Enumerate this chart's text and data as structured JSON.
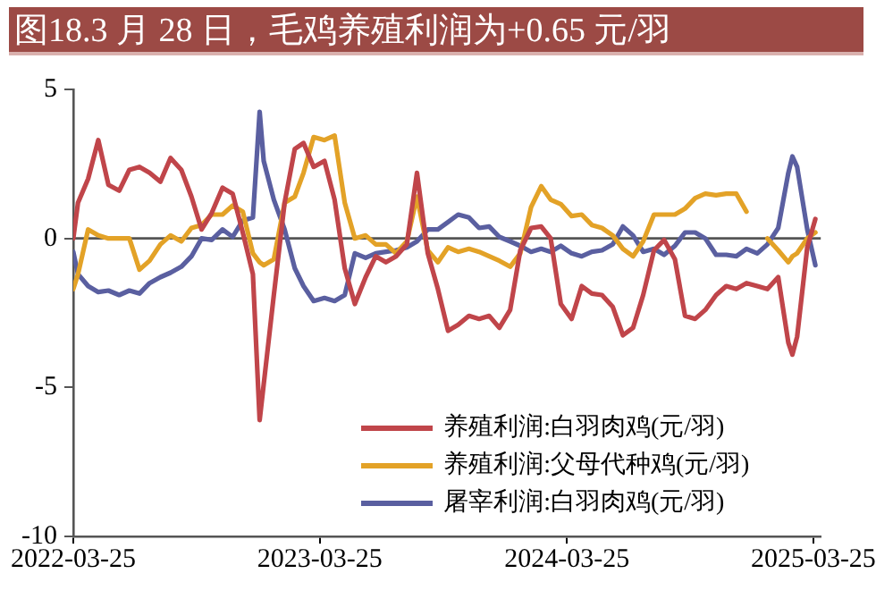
{
  "chart_data": {
    "type": "line",
    "title": "图18.3 月 28 日，毛鸡养殖利润为+0.65 元/羽",
    "x": [
      "2022-03-25",
      "2022-04-01",
      "2022-04-16",
      "2022-05-01",
      "2022-05-16",
      "2022-06-01",
      "2022-06-16",
      "2022-07-01",
      "2022-07-16",
      "2022-08-01",
      "2022-08-16",
      "2022-09-01",
      "2022-09-16",
      "2022-10-01",
      "2022-10-16",
      "2022-11-01",
      "2022-11-16",
      "2022-12-01",
      "2022-12-16",
      "2022-12-26",
      "2023-01-01",
      "2023-01-16",
      "2023-02-01",
      "2023-02-16",
      "2023-03-01",
      "2023-03-16",
      "2023-04-01",
      "2023-04-16",
      "2023-05-01",
      "2023-05-16",
      "2023-06-01",
      "2023-06-16",
      "2023-07-01",
      "2023-07-16",
      "2023-08-01",
      "2023-08-16",
      "2023-09-01",
      "2023-09-16",
      "2023-10-01",
      "2023-10-16",
      "2023-11-01",
      "2023-11-16",
      "2023-12-01",
      "2023-12-16",
      "2024-01-01",
      "2024-01-16",
      "2024-02-01",
      "2024-02-16",
      "2024-03-01",
      "2024-03-16",
      "2024-04-01",
      "2024-04-16",
      "2024-05-01",
      "2024-05-16",
      "2024-06-01",
      "2024-06-16",
      "2024-07-01",
      "2024-07-16",
      "2024-08-01",
      "2024-08-16",
      "2024-09-01",
      "2024-09-16",
      "2024-10-01",
      "2024-10-16",
      "2024-11-01",
      "2024-11-16",
      "2024-12-01",
      "2024-12-16",
      "2025-01-01",
      "2025-01-16",
      "2025-02-01",
      "2025-02-16",
      "2025-02-22",
      "2025-03-01",
      "2025-03-16",
      "2025-03-28"
    ],
    "series": [
      {
        "name": "养殖利润:白羽肉鸡(元/羽)",
        "color": "#c0454a",
        "values": [
          0,
          1.2,
          2.0,
          3.3,
          1.8,
          1.6,
          2.3,
          2.4,
          2.2,
          1.9,
          2.7,
          2.3,
          1.4,
          0.3,
          0.85,
          1.7,
          1.5,
          0.2,
          -1.2,
          -6.1,
          -4.9,
          -1.9,
          1.2,
          3.0,
          3.2,
          2.4,
          2.6,
          1.3,
          -1.0,
          -2.2,
          -1.3,
          -0.6,
          -0.8,
          -0.6,
          -0.2,
          2.2,
          -0.5,
          -1.7,
          -3.1,
          -2.9,
          -2.6,
          -2.7,
          -2.6,
          -3.0,
          -2.4,
          -0.4,
          0.35,
          0.4,
          0.0,
          -2.2,
          -2.7,
          -1.6,
          -1.85,
          -1.9,
          -2.3,
          -3.25,
          -3.0,
          -1.9,
          -0.4,
          -0.05,
          -0.7,
          -2.6,
          -2.7,
          -2.4,
          -1.9,
          -1.6,
          -1.7,
          -1.5,
          -1.6,
          -1.7,
          -1.3,
          -3.5,
          -3.9,
          -3.3,
          -0.3,
          0.65
        ]
      },
      {
        "name": "养殖利润:父母代种鸡(元/羽)",
        "color": "#e3a227",
        "values": [
          -1.7,
          -1.2,
          0.3,
          0.1,
          0,
          0,
          0,
          -1.05,
          -0.75,
          -0.2,
          0.1,
          -0.1,
          0.35,
          0.45,
          0.8,
          0.8,
          1.1,
          0.9,
          -0.5,
          -0.8,
          -0.9,
          -0.7,
          1.2,
          1.4,
          2.2,
          3.4,
          3.3,
          3.45,
          1.2,
          0,
          0.1,
          -0.2,
          -0.2,
          -0.5,
          -0.1,
          1.4,
          -0.4,
          -0.8,
          -0.3,
          -0.45,
          -0.35,
          -0.45,
          -0.6,
          -0.75,
          -0.95,
          -0.5,
          1.05,
          1.75,
          1.3,
          1.15,
          0.75,
          0.8,
          0.45,
          0.35,
          0.1,
          -0.35,
          -0.6,
          -0.1,
          0.8,
          0.8,
          0.8,
          1.0,
          1.35,
          1.5,
          1.45,
          1.5,
          1.5,
          0.9,
          null,
          0.0,
          -0.4,
          -0.8,
          -0.6,
          -0.5,
          0,
          0.2
        ]
      },
      {
        "name": "屠宰利润:白羽肉鸡(元/羽)",
        "color": "#5a5fa0",
        "values": [
          -0.45,
          -1.2,
          -1.6,
          -1.8,
          -1.75,
          -1.9,
          -1.75,
          -1.85,
          -1.5,
          -1.3,
          -1.15,
          -0.95,
          -0.6,
          0,
          -0.05,
          0.3,
          0.05,
          0.6,
          0.7,
          4.25,
          2.6,
          1.3,
          0.3,
          -1.0,
          -1.6,
          -2.1,
          -2.0,
          -2.1,
          -1.9,
          -0.5,
          -0.65,
          -0.5,
          -0.45,
          -0.4,
          -0.3,
          -0.1,
          0.3,
          0.3,
          0.55,
          0.8,
          0.7,
          0.35,
          0.4,
          0.05,
          -0.1,
          -0.25,
          -0.45,
          -0.35,
          -0.45,
          -0.25,
          -0.5,
          -0.6,
          -0.45,
          -0.4,
          -0.2,
          0.4,
          0.1,
          -0.45,
          -0.35,
          -0.55,
          -0.25,
          0.2,
          0.2,
          0,
          -0.55,
          -0.55,
          -0.6,
          -0.35,
          -0.5,
          -0.2,
          0.35,
          2.2,
          2.75,
          2.4,
          0.3,
          -0.9
        ]
      }
    ],
    "xlim": [
      "2022-03-25",
      "2025-04-05"
    ],
    "xticks": [
      "2022-03-25",
      "2023-03-25",
      "2024-03-25",
      "2025-03-25"
    ],
    "ylim": [
      -10,
      5
    ],
    "yticks": [
      -10,
      -5,
      0,
      5
    ],
    "ref_lines": [
      {
        "axis": "y",
        "value": 0,
        "color": "#555555"
      }
    ],
    "grid": false,
    "legend": "bottom right",
    "marker": "none",
    "line_style": "solid"
  }
}
